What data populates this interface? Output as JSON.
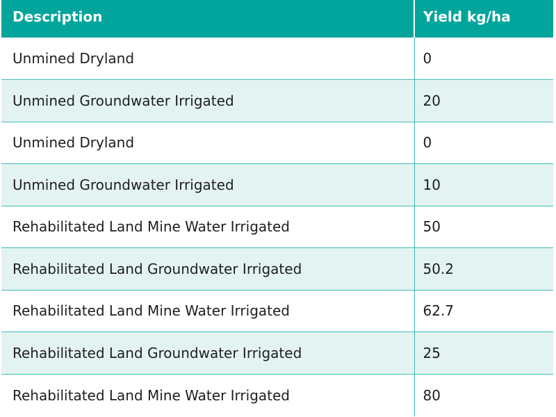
{
  "table": {
    "headers": [
      "Description",
      "Yield kg/ha"
    ],
    "rows": [
      [
        "Unmined Dryland",
        "0"
      ],
      [
        "Unmined Groundwater Irrigated",
        "20"
      ],
      [
        "Unmined Dryland",
        "0"
      ],
      [
        "Unmined Groundwater Irrigated",
        "10"
      ],
      [
        "Rehabilitated Land Mine Water Irrigated",
        "50"
      ],
      [
        "Rehabilitated Land Groundwater Irrigated",
        "50.2"
      ],
      [
        "Rehabilitated Land Mine Water Irrigated",
        "62.7"
      ],
      [
        "Rehabilitated Land Groundwater Irrigated",
        "25"
      ],
      [
        "Rehabilitated Land Mine Water Irrigated",
        "80"
      ]
    ]
  },
  "colors": {
    "header_bg": "#01a59c",
    "row_shade": "#e3f3f1",
    "grid_line": "#3dbfb3"
  }
}
